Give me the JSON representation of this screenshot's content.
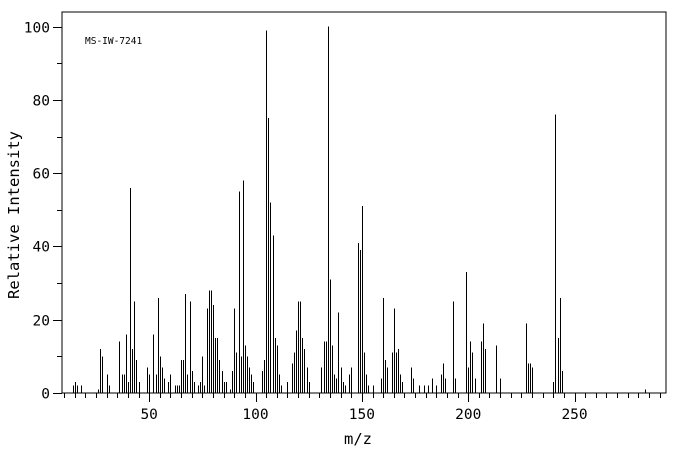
{
  "annotation": "MS-IW-7241",
  "colors": {
    "foreground": "#000000",
    "background": "#ffffff"
  },
  "chart_data": {
    "type": "bar",
    "title": "MS-IW-7241",
    "xlabel": "m/z",
    "ylabel": "Relative Intensity",
    "xlim": [
      9,
      293
    ],
    "ylim": [
      0,
      104
    ],
    "grid": false,
    "legend": false,
    "x_major_ticks": [
      50,
      100,
      150,
      200,
      250
    ],
    "x_minor_tick_step": 5,
    "y_major_ticks": [
      0,
      20,
      40,
      60,
      80,
      100
    ],
    "y_minor_tick_step": 10,
    "series_name": "relative intensity vs m/z",
    "peaks": [
      [
        14,
        2
      ],
      [
        15,
        3
      ],
      [
        16,
        2
      ],
      [
        18,
        2
      ],
      [
        26,
        1
      ],
      [
        27,
        12
      ],
      [
        28,
        10
      ],
      [
        30,
        5
      ],
      [
        31,
        2
      ],
      [
        36,
        14
      ],
      [
        37,
        5
      ],
      [
        38,
        5
      ],
      [
        39,
        16
      ],
      [
        40,
        3
      ],
      [
        41,
        56
      ],
      [
        42,
        12
      ],
      [
        43,
        25
      ],
      [
        44,
        9
      ],
      [
        45,
        3
      ],
      [
        49,
        7
      ],
      [
        50,
        5
      ],
      [
        52,
        16
      ],
      [
        53,
        5
      ],
      [
        54,
        26
      ],
      [
        55,
        10
      ],
      [
        56,
        7
      ],
      [
        57,
        4
      ],
      [
        59,
        3
      ],
      [
        60,
        5
      ],
      [
        62,
        2
      ],
      [
        63,
        2
      ],
      [
        64,
        2
      ],
      [
        65,
        9
      ],
      [
        66,
        9
      ],
      [
        67,
        27
      ],
      [
        68,
        5
      ],
      [
        69,
        25
      ],
      [
        70,
        6
      ],
      [
        71,
        3
      ],
      [
        73,
        2
      ],
      [
        74,
        3
      ],
      [
        75,
        10
      ],
      [
        76,
        2
      ],
      [
        77,
        23
      ],
      [
        78,
        28
      ],
      [
        79,
        28
      ],
      [
        80,
        24
      ],
      [
        81,
        15
      ],
      [
        82,
        15
      ],
      [
        83,
        9
      ],
      [
        84,
        6
      ],
      [
        85,
        3
      ],
      [
        86,
        3
      ],
      [
        88,
        1
      ],
      [
        89,
        6
      ],
      [
        90,
        23
      ],
      [
        91,
        11
      ],
      [
        92,
        55
      ],
      [
        93,
        10
      ],
      [
        94,
        58
      ],
      [
        95,
        13
      ],
      [
        96,
        10
      ],
      [
        97,
        7
      ],
      [
        98,
        5
      ],
      [
        99,
        3
      ],
      [
        103,
        6
      ],
      [
        104,
        9
      ],
      [
        105,
        99
      ],
      [
        106,
        75
      ],
      [
        107,
        52
      ],
      [
        108,
        43
      ],
      [
        109,
        15
      ],
      [
        110,
        13
      ],
      [
        111,
        5
      ],
      [
        112,
        2
      ],
      [
        115,
        3
      ],
      [
        117,
        8
      ],
      [
        118,
        11
      ],
      [
        119,
        17
      ],
      [
        120,
        25
      ],
      [
        121,
        25
      ],
      [
        122,
        15
      ],
      [
        123,
        12
      ],
      [
        124,
        7
      ],
      [
        125,
        3
      ],
      [
        131,
        7
      ],
      [
        132,
        14
      ],
      [
        133,
        14
      ],
      [
        134,
        100
      ],
      [
        135,
        31
      ],
      [
        136,
        13
      ],
      [
        137,
        5
      ],
      [
        138,
        4
      ],
      [
        139,
        22
      ],
      [
        140,
        7
      ],
      [
        141,
        3
      ],
      [
        142,
        2
      ],
      [
        144,
        5
      ],
      [
        145,
        7
      ],
      [
        148,
        41
      ],
      [
        149,
        39
      ],
      [
        150,
        51
      ],
      [
        151,
        11
      ],
      [
        152,
        5
      ],
      [
        153,
        2
      ],
      [
        155,
        2
      ],
      [
        159,
        4
      ],
      [
        160,
        26
      ],
      [
        161,
        9
      ],
      [
        162,
        7
      ],
      [
        164,
        11
      ],
      [
        165,
        23
      ],
      [
        166,
        11
      ],
      [
        167,
        12
      ],
      [
        168,
        5
      ],
      [
        169,
        3
      ],
      [
        173,
        7
      ],
      [
        174,
        4
      ],
      [
        177,
        2
      ],
      [
        179,
        2
      ],
      [
        181,
        2
      ],
      [
        183,
        4
      ],
      [
        185,
        2
      ],
      [
        187,
        5
      ],
      [
        188,
        8
      ],
      [
        189,
        4
      ],
      [
        193,
        25
      ],
      [
        194,
        4
      ],
      [
        199,
        33
      ],
      [
        200,
        7
      ],
      [
        201,
        14
      ],
      [
        202,
        11
      ],
      [
        203,
        4
      ],
      [
        206,
        14
      ],
      [
        207,
        19
      ],
      [
        208,
        12
      ],
      [
        213,
        13
      ],
      [
        215,
        4
      ],
      [
        227,
        19
      ],
      [
        228,
        8
      ],
      [
        229,
        8
      ],
      [
        230,
        7
      ],
      [
        240,
        3
      ],
      [
        241,
        76
      ],
      [
        242,
        15
      ],
      [
        243,
        26
      ],
      [
        244,
        6
      ],
      [
        283,
        1
      ]
    ]
  }
}
